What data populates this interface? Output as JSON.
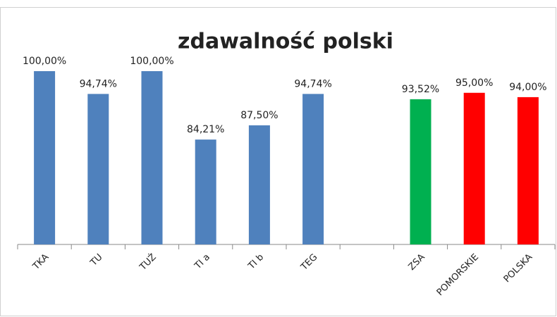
{
  "chart_data": {
    "type": "bar",
    "title": "zdawalność polski",
    "categories": [
      "TKA",
      "TU",
      "TUŻ",
      "TI a",
      "TI b",
      "TEG",
      null,
      "ZSA",
      "POMORSKIE",
      "POLSKA"
    ],
    "values": [
      100,
      94.74,
      100,
      84.21,
      87.5,
      94.74,
      null,
      93.52,
      95,
      94
    ],
    "value_labels": [
      "100,00%",
      "94,74%",
      "100,00%",
      "84,21%",
      "87,50%",
      "94,74%",
      null,
      "93,52%",
      "95,00%",
      "94,00%"
    ],
    "colors": [
      "#4f81bd",
      "#4f81bd",
      "#4f81bd",
      "#4f81bd",
      "#4f81bd",
      "#4f81bd",
      null,
      "#00b050",
      "#ff0000",
      "#ff0000"
    ],
    "ylim": [
      60,
      100
    ]
  }
}
